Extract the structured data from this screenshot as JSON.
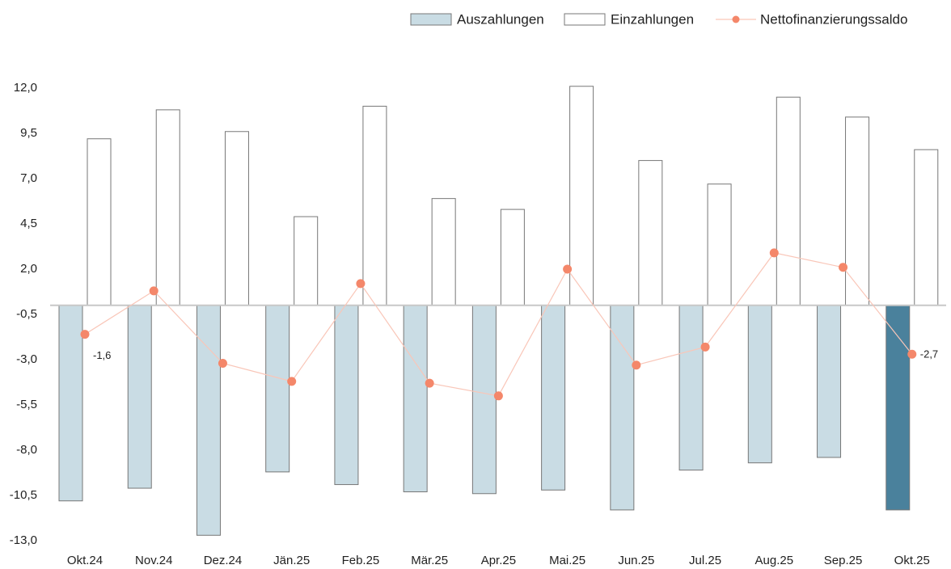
{
  "chart_data": {
    "type": "bar-line",
    "categories": [
      "Okt.24",
      "Nov.24",
      "Dez.24",
      "Jän.25",
      "Feb.25",
      "Mär.25",
      "Apr.25",
      "Mai.25",
      "Jun.25",
      "Jul.25",
      "Aug.25",
      "Sep.25",
      "Okt.25"
    ],
    "series": [
      {
        "name": "Auszahlungen",
        "type": "bar",
        "color": "#c9dce4",
        "colors": [
          "#c9dce4",
          "#c9dce4",
          "#c9dce4",
          "#c9dce4",
          "#c9dce4",
          "#c9dce4",
          "#c9dce4",
          "#c9dce4",
          "#c9dce4",
          "#c9dce4",
          "#c9dce4",
          "#c9dce4",
          "#4a819c"
        ],
        "values": [
          -10.8,
          -10.1,
          -12.7,
          -9.2,
          -9.9,
          -10.3,
          -10.4,
          -10.2,
          -11.3,
          -9.1,
          -8.7,
          -8.4,
          -11.3
        ]
      },
      {
        "name": "Einzahlungen",
        "type": "bar",
        "color": "#ffffff",
        "values": [
          9.2,
          10.8,
          9.6,
          4.9,
          11.0,
          5.9,
          5.3,
          12.1,
          8.0,
          6.7,
          11.5,
          10.4,
          8.6
        ]
      },
      {
        "name": "Nettofinanzierungssaldo",
        "type": "line",
        "color": "#f4876a",
        "line_color": "#f9c6b8",
        "values": [
          -1.6,
          0.8,
          -3.2,
          -4.2,
          1.2,
          -4.3,
          -5.0,
          2.0,
          -3.3,
          -2.3,
          2.9,
          2.1,
          -2.7
        ],
        "value_labels": [
          "-1,6",
          null,
          null,
          null,
          null,
          null,
          null,
          null,
          null,
          null,
          null,
          null,
          "-2,7"
        ]
      }
    ],
    "ylim": [
      -13,
      12
    ],
    "yticks": [
      {
        "value": 12,
        "label": "12,0"
      },
      {
        "value": 9.5,
        "label": "9,5"
      },
      {
        "value": 7,
        "label": "7,0"
      },
      {
        "value": 4.5,
        "label": "4,5"
      },
      {
        "value": 2,
        "label": "2,0"
      },
      {
        "value": -0.5,
        "label": "-0,5"
      },
      {
        "value": -3,
        "label": "-3,0"
      },
      {
        "value": -5.5,
        "label": "-5,5"
      },
      {
        "value": -8,
        "label": "-8,0"
      },
      {
        "value": -10.5,
        "label": "-10,5"
      },
      {
        "value": -13,
        "label": "-13,0"
      }
    ],
    "grid": false,
    "legend": "top-right"
  }
}
